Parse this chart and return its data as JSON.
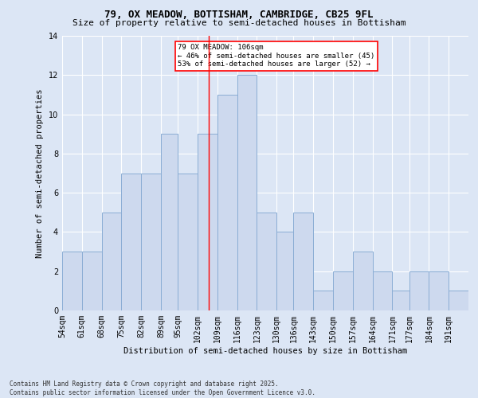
{
  "title1": "79, OX MEADOW, BOTTISHAM, CAMBRIDGE, CB25 9FL",
  "title2": "Size of property relative to semi-detached houses in Bottisham",
  "xlabel": "Distribution of semi-detached houses by size in Bottisham",
  "ylabel": "Number of semi-detached properties",
  "bin_labels": [
    "54sqm",
    "61sqm",
    "68sqm",
    "75sqm",
    "82sqm",
    "89sqm",
    "95sqm",
    "102sqm",
    "109sqm",
    "116sqm",
    "123sqm",
    "130sqm",
    "136sqm",
    "143sqm",
    "150sqm",
    "157sqm",
    "164sqm",
    "171sqm",
    "177sqm",
    "184sqm",
    "191sqm"
  ],
  "bin_edges": [
    54,
    61,
    68,
    75,
    82,
    89,
    95,
    102,
    109,
    116,
    123,
    130,
    136,
    143,
    150,
    157,
    164,
    171,
    177,
    184,
    191,
    198
  ],
  "values": [
    3,
    3,
    5,
    7,
    7,
    9,
    7,
    9,
    11,
    12,
    5,
    4,
    5,
    1,
    2,
    3,
    2,
    1,
    2,
    2,
    1
  ],
  "bar_color": "#cdd9ee",
  "bar_edge_color": "#8aadd4",
  "property_size": 106,
  "annotation_title": "79 OX MEADOW: 106sqm",
  "annotation_line1": "← 46% of semi-detached houses are smaller (45)",
  "annotation_line2": "53% of semi-detached houses are larger (52) →",
  "vline_color": "red",
  "annotation_box_color": "white",
  "annotation_box_edge_color": "red",
  "footer1": "Contains HM Land Registry data © Crown copyright and database right 2025.",
  "footer2": "Contains public sector information licensed under the Open Government Licence v3.0.",
  "background_color": "#dce6f5",
  "plot_bg_color": "#dce6f5",
  "ylim": [
    0,
    14
  ],
  "yticks": [
    0,
    2,
    4,
    6,
    8,
    10,
    12,
    14
  ],
  "title1_fontsize": 9,
  "title2_fontsize": 8,
  "axis_label_fontsize": 7.5,
  "tick_fontsize": 7,
  "footer_fontsize": 5.5
}
